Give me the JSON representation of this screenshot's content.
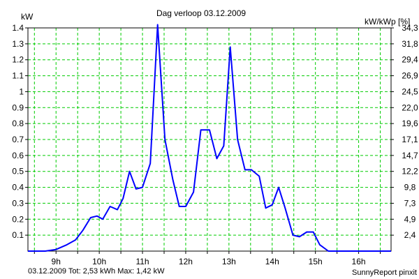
{
  "chart_data": {
    "type": "line",
    "title": "Dag  verloop 03.12.2009",
    "y_left_label": "kW",
    "y_right_label": "kW/kWp [%]",
    "y_left_ticks": [
      "0.1",
      "0.2",
      "0.3",
      "0.4",
      "0.5",
      "0.6",
      "0.7",
      "0.8",
      "0.9",
      "1",
      "1.1",
      "1.2",
      "1.3",
      "1.4"
    ],
    "y_right_ticks": [
      "2,4",
      "4,9",
      "7,3",
      "9,8",
      "12,2",
      "14,7",
      "17,1",
      "19,6",
      "22,0",
      "24,5",
      "26,9",
      "29,4",
      "31,8",
      "34,3"
    ],
    "x_tick_labels": [
      "9h",
      "10h",
      "11h",
      "12h",
      "13h",
      "14h",
      "15h",
      "16h"
    ],
    "x_range_hours": [
      8.35,
      16.75
    ],
    "ylim": [
      0,
      1.4
    ],
    "grid": true,
    "series": [
      {
        "color": "#0000ff",
        "points": [
          [
            8.35,
            0.0
          ],
          [
            8.5,
            0.0
          ],
          [
            8.75,
            0.0
          ],
          [
            9.0,
            0.01
          ],
          [
            9.25,
            0.04
          ],
          [
            9.45,
            0.07
          ],
          [
            9.62,
            0.13
          ],
          [
            9.8,
            0.21
          ],
          [
            9.95,
            0.22
          ],
          [
            10.08,
            0.2
          ],
          [
            10.25,
            0.28
          ],
          [
            10.42,
            0.26
          ],
          [
            10.55,
            0.33
          ],
          [
            10.7,
            0.5
          ],
          [
            10.85,
            0.39
          ],
          [
            11.0,
            0.4
          ],
          [
            11.18,
            0.55
          ],
          [
            11.35,
            1.42
          ],
          [
            11.52,
            0.7
          ],
          [
            11.7,
            0.45
          ],
          [
            11.85,
            0.28
          ],
          [
            12.0,
            0.28
          ],
          [
            12.18,
            0.37
          ],
          [
            12.35,
            0.76
          ],
          [
            12.55,
            0.76
          ],
          [
            12.72,
            0.58
          ],
          [
            12.88,
            0.66
          ],
          [
            13.03,
            1.28
          ],
          [
            13.2,
            0.7
          ],
          [
            13.37,
            0.51
          ],
          [
            13.52,
            0.51
          ],
          [
            13.7,
            0.47
          ],
          [
            13.85,
            0.27
          ],
          [
            14.0,
            0.29
          ],
          [
            14.15,
            0.4
          ],
          [
            14.3,
            0.27
          ],
          [
            14.48,
            0.1
          ],
          [
            14.63,
            0.09
          ],
          [
            14.8,
            0.12
          ],
          [
            14.95,
            0.12
          ],
          [
            15.1,
            0.04
          ],
          [
            15.3,
            0.0
          ],
          [
            15.5,
            0.0
          ],
          [
            16.0,
            0.0
          ],
          [
            16.75,
            0.0
          ]
        ]
      }
    ],
    "footer_left": "03.12.2009 Tot: 2,53 kWh Max: 1,42 kW",
    "footer_right": "SunnyReport pinxit",
    "colors": {
      "line": "#0000ff",
      "grid": "#00cc00",
      "footer_left": "#0000cc"
    }
  }
}
